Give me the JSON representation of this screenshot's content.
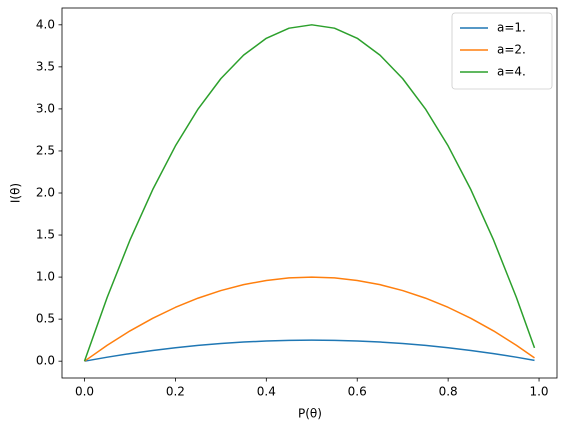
{
  "chart_data": {
    "type": "line",
    "xlabel": "P(θ)",
    "ylabel": "I(θ)",
    "x": [
      0,
      0.05,
      0.1,
      0.15,
      0.2,
      0.25,
      0.3,
      0.35,
      0.4,
      0.45,
      0.5,
      0.55,
      0.6,
      0.65,
      0.7,
      0.75,
      0.8,
      0.85,
      0.9,
      0.95,
      0.99
    ],
    "series": [
      {
        "name": "a=1.",
        "color": "#1f77b4",
        "values": [
          0,
          0.0475,
          0.09,
          0.1275,
          0.16,
          0.1875,
          0.21,
          0.2275,
          0.24,
          0.2475,
          0.25,
          0.2475,
          0.24,
          0.2275,
          0.21,
          0.1875,
          0.16,
          0.1275,
          0.09,
          0.0475,
          0.0099
        ]
      },
      {
        "name": "a=2.",
        "color": "#ff7f0e",
        "values": [
          0,
          0.19,
          0.36,
          0.51,
          0.64,
          0.75,
          0.84,
          0.91,
          0.96,
          0.99,
          1,
          0.99,
          0.96,
          0.91,
          0.84,
          0.75,
          0.64,
          0.51,
          0.36,
          0.19,
          0.0396
        ]
      },
      {
        "name": "a=4.",
        "color": "#2ca02c",
        "values": [
          0,
          0.76,
          1.44,
          2.04,
          2.56,
          3,
          3.36,
          3.64,
          3.84,
          3.96,
          4,
          3.96,
          3.84,
          3.64,
          3.36,
          3,
          2.56,
          2.04,
          1.44,
          0.76,
          0.1584
        ]
      }
    ],
    "xlim": [
      -0.0495,
      1.0395
    ],
    "ylim": [
      -0.2,
      4.2
    ],
    "xticks": [
      {
        "value": 0,
        "label": "0.0"
      },
      {
        "value": 0.2,
        "label": "0.2"
      },
      {
        "value": 0.4,
        "label": "0.4"
      },
      {
        "value": 0.6,
        "label": "0.6"
      },
      {
        "value": 0.8,
        "label": "0.8"
      },
      {
        "value": 1,
        "label": "1.0"
      }
    ],
    "yticks": [
      {
        "value": 0,
        "label": "0.0"
      },
      {
        "value": 0.5,
        "label": "0.5"
      },
      {
        "value": 1,
        "label": "1.0"
      },
      {
        "value": 1.5,
        "label": "1.5"
      },
      {
        "value": 2,
        "label": "2.0"
      },
      {
        "value": 2.5,
        "label": "2.5"
      },
      {
        "value": 3,
        "label": "3.0"
      },
      {
        "value": 3.5,
        "label": "3.5"
      },
      {
        "value": 4,
        "label": "4.0"
      }
    ],
    "legend": "upper right"
  }
}
